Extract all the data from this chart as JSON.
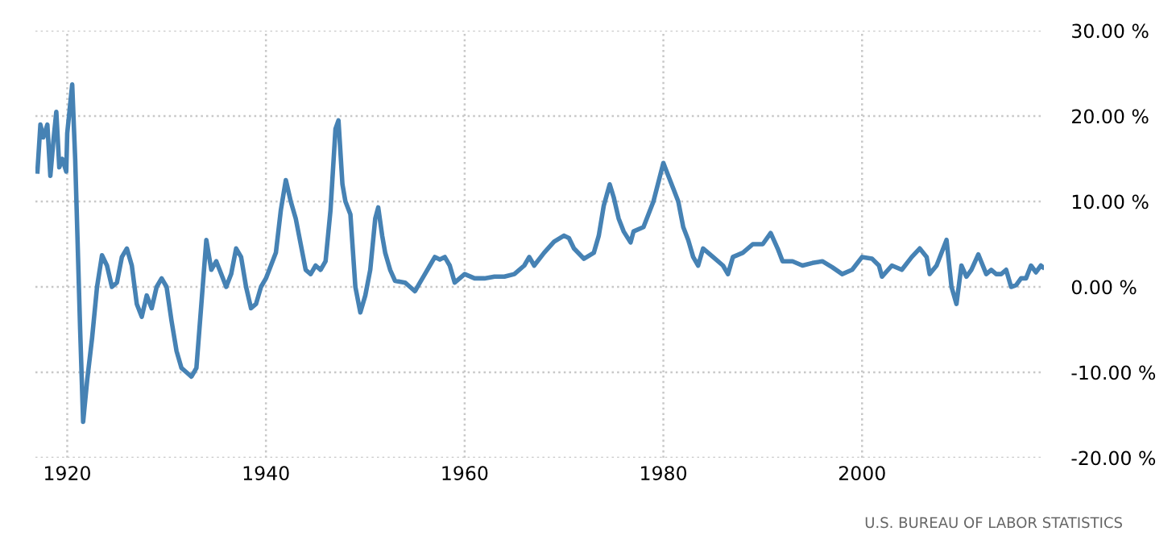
{
  "chart_data": {
    "type": "line",
    "x": [
      1917.0,
      1917.3,
      1917.6,
      1918.0,
      1918.3,
      1918.6,
      1918.9,
      1919.2,
      1919.5,
      1919.9,
      1920.0,
      1920.5,
      1920.8,
      1921.3,
      1921.6,
      1922.0,
      1922.5,
      1923.0,
      1923.5,
      1924.0,
      1924.5,
      1925.0,
      1925.5,
      1926.0,
      1926.5,
      1927.0,
      1927.5,
      1928.0,
      1928.5,
      1929.0,
      1929.5,
      1930.0,
      1930.5,
      1931.0,
      1931.5,
      1932.0,
      1932.5,
      1933.0,
      1933.5,
      1934.0,
      1934.5,
      1935.0,
      1935.5,
      1936.0,
      1936.5,
      1937.0,
      1937.5,
      1938.0,
      1938.5,
      1939.0,
      1939.5,
      1940.0,
      1940.5,
      1941.0,
      1941.5,
      1942.0,
      1942.5,
      1943.0,
      1943.5,
      1944.0,
      1944.5,
      1945.0,
      1945.5,
      1946.0,
      1946.5,
      1947.0,
      1947.3,
      1947.7,
      1948.0,
      1948.5,
      1949.0,
      1949.5,
      1950.0,
      1950.5,
      1951.0,
      1951.3,
      1951.7,
      1952.0,
      1952.5,
      1953.0,
      1954.0,
      1954.5,
      1955.0,
      1955.5,
      1956.0,
      1956.5,
      1957.0,
      1957.5,
      1958.0,
      1958.5,
      1959.0,
      1959.5,
      1960.0,
      1961.0,
      1962.0,
      1963.0,
      1964.0,
      1965.0,
      1966.0,
      1966.5,
      1967.0,
      1968.0,
      1969.0,
      1970.0,
      1970.5,
      1971.0,
      1972.0,
      1973.0,
      1973.5,
      1974.0,
      1974.6,
      1975.0,
      1975.5,
      1976.0,
      1976.7,
      1977.0,
      1978.0,
      1979.0,
      1980.0,
      1980.5,
      1981.0,
      1981.5,
      1982.0,
      1982.5,
      1983.0,
      1983.5,
      1984.0,
      1985.0,
      1986.0,
      1986.5,
      1987.0,
      1988.0,
      1989.0,
      1990.0,
      1990.8,
      1991.5,
      1992.0,
      1993.0,
      1994.0,
      1995.0,
      1996.0,
      1997.0,
      1998.0,
      1999.0,
      2000.0,
      2001.0,
      2001.7,
      2002.0,
      2003.0,
      2004.0,
      2005.0,
      2005.8,
      2006.5,
      2006.8,
      2007.5,
      2008.5,
      2009.0,
      2009.5,
      2010.0,
      2010.5,
      2011.0,
      2011.7,
      2012.5,
      2013.0,
      2013.5,
      2014.0,
      2014.5,
      2015.0,
      2015.5,
      2016.0,
      2016.5,
      2017.0,
      2017.5,
      2018.0,
      2018.2
    ],
    "series": [
      {
        "color": "#4682b4",
        "values": [
          13.5,
          19,
          17.5,
          19,
          13,
          17,
          20.5,
          14,
          15,
          13.5,
          18,
          23.7,
          15,
          -5,
          -15.8,
          -11,
          -6,
          0,
          3.7,
          2.5,
          0,
          0.5,
          3.5,
          4.5,
          2.5,
          -2,
          -3.5,
          -1,
          -2.5,
          0,
          1,
          0,
          -4,
          -7.5,
          -9.5,
          -10,
          -10.5,
          -9.5,
          -2,
          5.5,
          2,
          3,
          1.5,
          0,
          1.5,
          4.5,
          3.5,
          0,
          -2.5,
          -2,
          0,
          1,
          2.5,
          4,
          9,
          12.5,
          10,
          8,
          5,
          2,
          1.5,
          2.5,
          2,
          3,
          9,
          18.5,
          19.5,
          12,
          10,
          8.5,
          0,
          -3,
          -1,
          2,
          8,
          9.3,
          6,
          4,
          2,
          0.7,
          0.5,
          0,
          -0.5,
          0.5,
          1.5,
          2.5,
          3.5,
          3.2,
          3.5,
          2.5,
          0.5,
          1,
          1.5,
          1,
          1,
          1.2,
          1.2,
          1.5,
          2.5,
          3.5,
          2.5,
          4,
          5.3,
          6,
          5.7,
          4.5,
          3.3,
          4,
          6,
          9.5,
          12,
          10.5,
          8,
          6.5,
          5.2,
          6.5,
          7,
          10,
          14.5,
          13,
          11.5,
          10,
          7,
          5.5,
          3.5,
          2.5,
          4.5,
          3.5,
          2.5,
          1.5,
          3.5,
          4,
          5,
          5,
          6.3,
          4.5,
          3,
          3,
          2.5,
          2.8,
          3,
          2.3,
          1.5,
          2,
          3.5,
          3.3,
          2.5,
          1.2,
          2.5,
          2,
          3.5,
          4.5,
          3.5,
          1.5,
          2.5,
          5.5,
          0,
          -2,
          2.5,
          1.2,
          2,
          3.8,
          1.5,
          2,
          1.5,
          1.5,
          2,
          0,
          0.2,
          1,
          1,
          2.5,
          1.7,
          2.5,
          2.3
        ]
      }
    ],
    "xlim": [
      1916.8,
      2018.3
    ],
    "xticks": [
      1920,
      1940,
      1960,
      1980,
      2000
    ],
    "ylim": [
      -20,
      30
    ],
    "yticks": [
      {
        "value": -20,
        "label": "-20.00 %"
      },
      {
        "value": -10,
        "label": "-10.00 %"
      },
      {
        "value": 0,
        "label": "0.00 %"
      },
      {
        "value": 10,
        "label": "10.00 %"
      },
      {
        "value": 20,
        "label": "20.00 %"
      },
      {
        "value": 30,
        "label": "30.00 %"
      }
    ],
    "grid": true,
    "line_style": "solid",
    "annotations": [
      "U.S. BUREAU OF LABOR STATISTICS"
    ]
  }
}
